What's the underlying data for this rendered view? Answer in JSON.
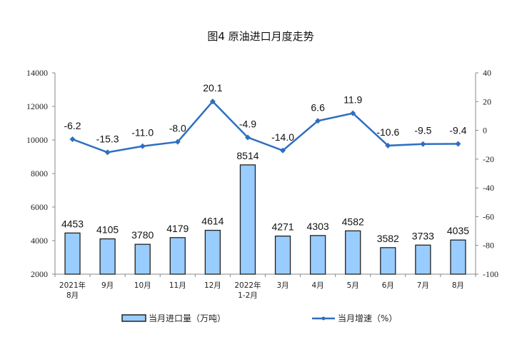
{
  "chart_data": {
    "type": "bar+line",
    "title": "图4  原油进口月度走势",
    "categories": [
      [
        "2021年",
        "8月"
      ],
      [
        "9月"
      ],
      [
        "10月"
      ],
      [
        "11月"
      ],
      [
        "12月"
      ],
      [
        "2022年",
        "1-2月"
      ],
      [
        "3月"
      ],
      [
        "4月"
      ],
      [
        "5月"
      ],
      [
        "6月"
      ],
      [
        "7月"
      ],
      [
        "8月"
      ]
    ],
    "series": [
      {
        "name": "当月进口量（万吨）",
        "type": "bar",
        "axis": "left",
        "color": "#99ccff",
        "values": [
          4453,
          4105,
          3780,
          4179,
          4614,
          8514,
          4271,
          4303,
          4582,
          3582,
          3733,
          4035
        ]
      },
      {
        "name": "当月增速（%）",
        "type": "line",
        "axis": "right",
        "color": "#2e6fc0",
        "values": [
          -6.2,
          -15.3,
          -11.0,
          -8.0,
          20.1,
          -4.9,
          -14.0,
          6.6,
          11.9,
          -10.6,
          -9.5,
          -9.4
        ]
      }
    ],
    "left_axis": {
      "range": [
        2000,
        14000
      ],
      "ticks": [
        2000,
        4000,
        6000,
        8000,
        10000,
        12000,
        14000
      ]
    },
    "right_axis": {
      "range": [
        -100,
        40
      ],
      "ticks": [
        -100,
        -80,
        -60,
        -40,
        -20,
        0,
        20,
        40
      ]
    },
    "grid": false,
    "legend": "bottom"
  }
}
